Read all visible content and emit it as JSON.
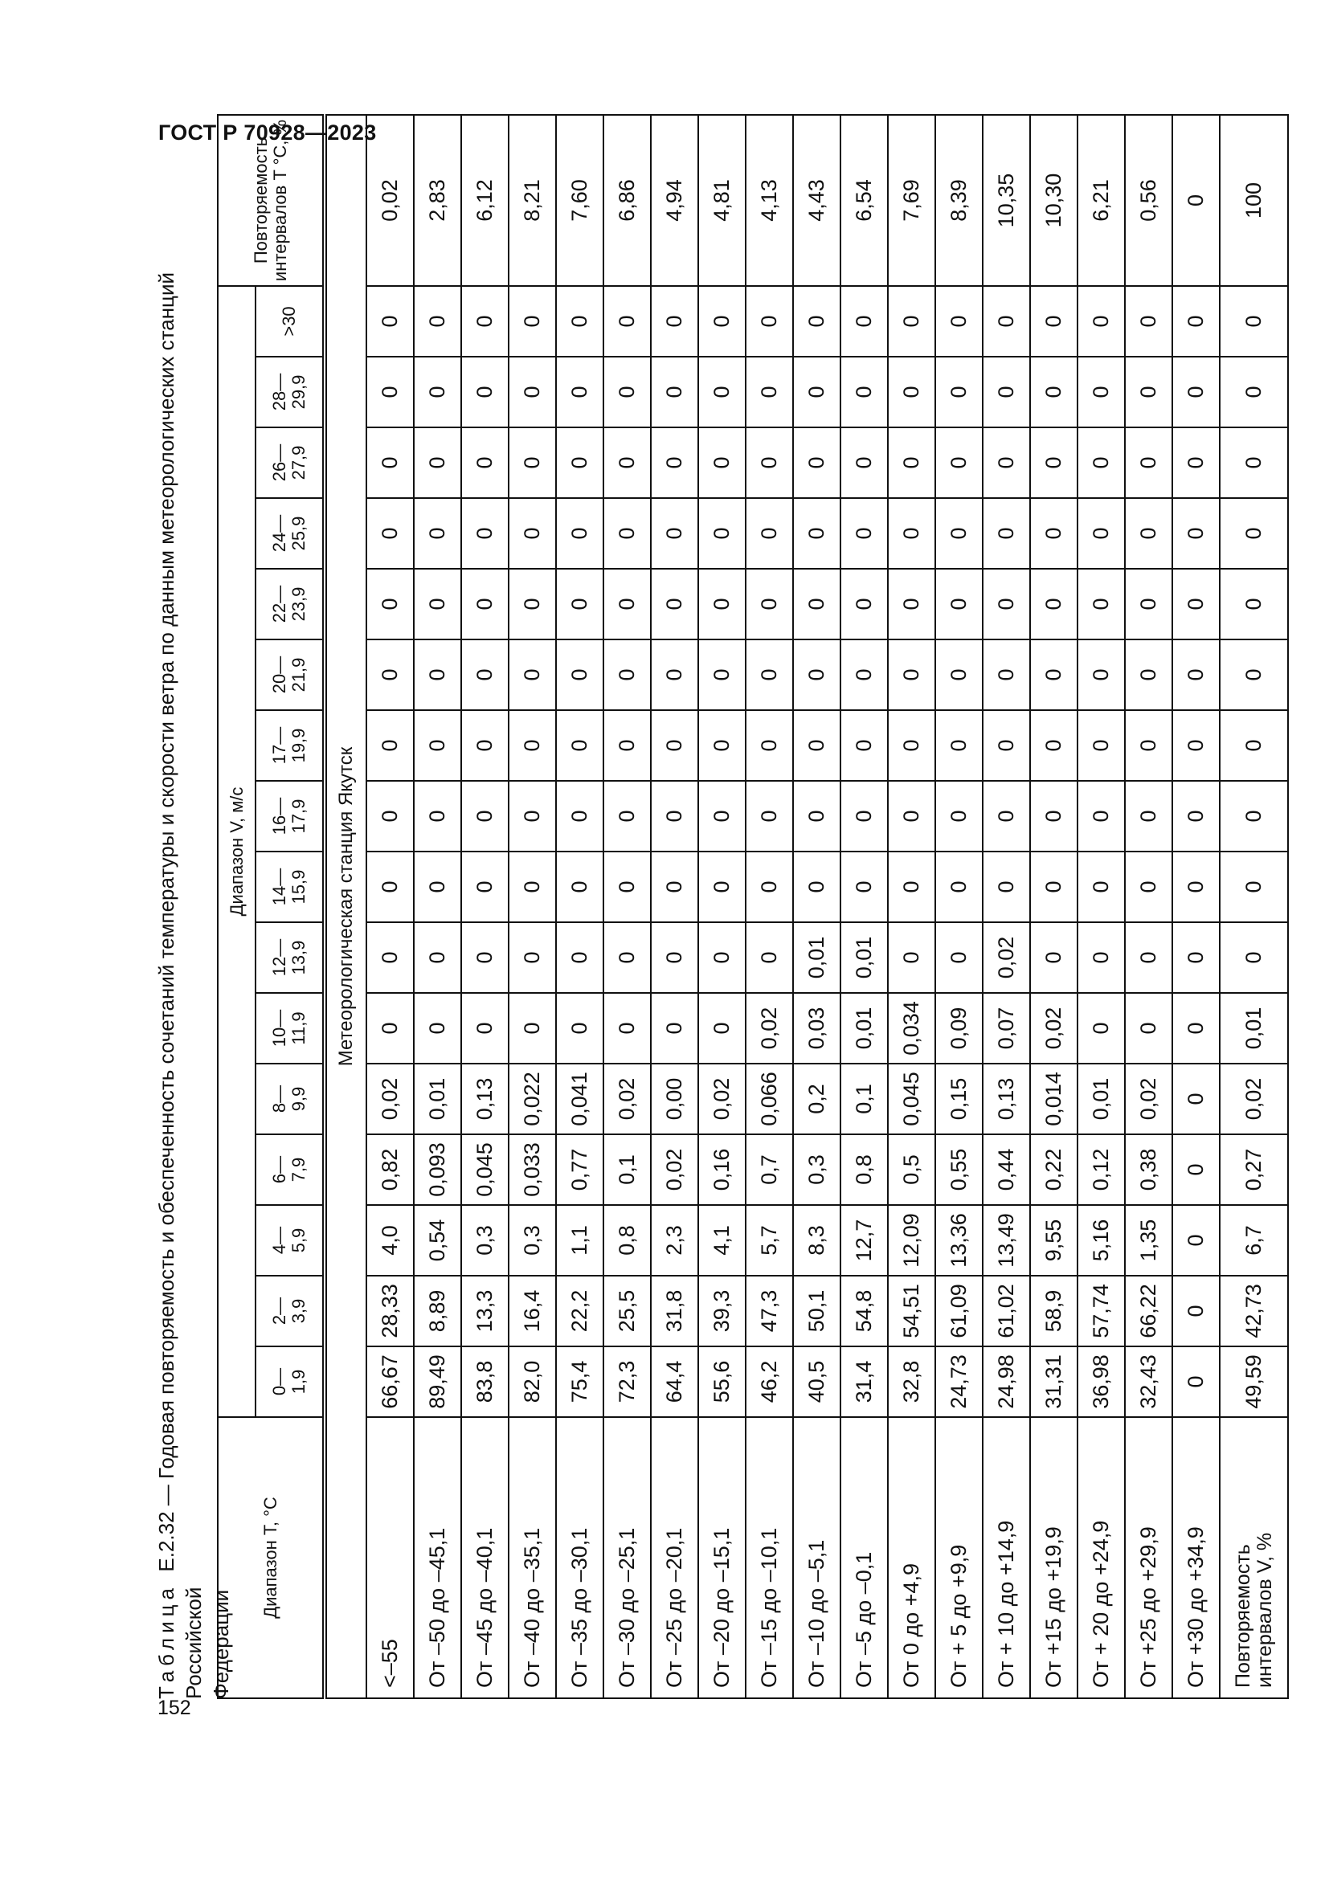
{
  "header": {
    "doc_code": "ГОСТ Р 70928—2023",
    "page_number": "152"
  },
  "caption": {
    "lead": "Таблица",
    "text": "Е.2.32 — Годовая повторяемость и обеспеченность сочетаний температуры и скорости ветра по данным метеорологических станций Российской",
    "line2": "Федерации"
  },
  "table": {
    "t_header": "Диапазон T, °C",
    "v_group_header": "Диапазон V, м/с",
    "rep_t_header": "Повторяемость интервалов T °C, %",
    "speed_columns": [
      "0—\n1,9",
      "2—\n3,9",
      "4—\n5,9",
      "6—\n7,9",
      "8—\n9,9",
      "10—\n11,9",
      "12—\n13,9",
      "14—\n15,9",
      "16—\n17,9",
      "17—\n19,9",
      "20—\n21,9",
      "22—\n23,9",
      "24—\n25,9",
      "26—\n27,9",
      "28—\n29,9",
      ">30"
    ],
    "station": "Метеорологическая станция Якутск",
    "rows": [
      {
        "label": "<–55",
        "values": [
          "66,67",
          "28,33",
          "4,0",
          "0,82",
          "0,02",
          "0",
          "0",
          "0",
          "0",
          "0",
          "0",
          "0",
          "0",
          "0",
          "0",
          "0"
        ],
        "rep": "0,02"
      },
      {
        "label": "От –50 до –45,1",
        "values": [
          "89,49",
          "8,89",
          "0,54",
          "0,093",
          "0,01",
          "0",
          "0",
          "0",
          "0",
          "0",
          "0",
          "0",
          "0",
          "0",
          "0",
          "0"
        ],
        "rep": "2,83"
      },
      {
        "label": "От –45 до –40,1",
        "values": [
          "83,8",
          "13,3",
          "0,3",
          "0,045",
          "0,13",
          "0",
          "0",
          "0",
          "0",
          "0",
          "0",
          "0",
          "0",
          "0",
          "0",
          "0"
        ],
        "rep": "6,12"
      },
      {
        "label": "От –40 до –35,1",
        "values": [
          "82,0",
          "16,4",
          "0,3",
          "0,033",
          "0,022",
          "0",
          "0",
          "0",
          "0",
          "0",
          "0",
          "0",
          "0",
          "0",
          "0",
          "0"
        ],
        "rep": "8,21"
      },
      {
        "label": "От –35 до –30,1",
        "values": [
          "75,4",
          "22,2",
          "1,1",
          "0,77",
          "0,041",
          "0",
          "0",
          "0",
          "0",
          "0",
          "0",
          "0",
          "0",
          "0",
          "0",
          "0"
        ],
        "rep": "7,60"
      },
      {
        "label": "От –30 до –25,1",
        "values": [
          "72,3",
          "25,5",
          "0,8",
          "0,1",
          "0,02",
          "0",
          "0",
          "0",
          "0",
          "0",
          "0",
          "0",
          "0",
          "0",
          "0",
          "0"
        ],
        "rep": "6,86"
      },
      {
        "label": "От –25 до –20,1",
        "values": [
          "64,4",
          "31,8",
          "2,3",
          "0,02",
          "0,00",
          "0",
          "0",
          "0",
          "0",
          "0",
          "0",
          "0",
          "0",
          "0",
          "0",
          "0"
        ],
        "rep": "4,94"
      },
      {
        "label": "От –20 до –15,1",
        "values": [
          "55,6",
          "39,3",
          "4,1",
          "0,16",
          "0,02",
          "0",
          "0",
          "0",
          "0",
          "0",
          "0",
          "0",
          "0",
          "0",
          "0",
          "0"
        ],
        "rep": "4,81"
      },
      {
        "label": "От –15 до –10,1",
        "values": [
          "46,2",
          "47,3",
          "5,7",
          "0,7",
          "0,066",
          "0,02",
          "0",
          "0",
          "0",
          "0",
          "0",
          "0",
          "0",
          "0",
          "0",
          "0"
        ],
        "rep": "4,13"
      },
      {
        "label": "От –10 до –5,1",
        "values": [
          "40,5",
          "50,1",
          "8,3",
          "0,3",
          "0,2",
          "0,03",
          "0,01",
          "0",
          "0",
          "0",
          "0",
          "0",
          "0",
          "0",
          "0",
          "0"
        ],
        "rep": "4,43"
      },
      {
        "label": "От –5 до –0,1",
        "values": [
          "31,4",
          "54,8",
          "12,7",
          "0,8",
          "0,1",
          "0,01",
          "0,01",
          "0",
          "0",
          "0",
          "0",
          "0",
          "0",
          "0",
          "0",
          "0"
        ],
        "rep": "6,54"
      },
      {
        "label": "От 0 до +4,9",
        "values": [
          "32,8",
          "54,51",
          "12,09",
          "0,5",
          "0,045",
          "0,034",
          "0",
          "0",
          "0",
          "0",
          "0",
          "0",
          "0",
          "0",
          "0",
          "0"
        ],
        "rep": "7,69"
      },
      {
        "label": "От + 5 до +9,9",
        "values": [
          "24,73",
          "61,09",
          "13,36",
          "0,55",
          "0,15",
          "0,09",
          "0",
          "0",
          "0",
          "0",
          "0",
          "0",
          "0",
          "0",
          "0",
          "0"
        ],
        "rep": "8,39"
      },
      {
        "label": "От + 10 до +14,9",
        "values": [
          "24,98",
          "61,02",
          "13,49",
          "0,44",
          "0,13",
          "0,07",
          "0,02",
          "0",
          "0",
          "0",
          "0",
          "0",
          "0",
          "0",
          "0",
          "0"
        ],
        "rep": "10,35"
      },
      {
        "label": "От +15 до +19,9",
        "values": [
          "31,31",
          "58,9",
          "9,55",
          "0,22",
          "0,014",
          "0,02",
          "0",
          "0",
          "0",
          "0",
          "0",
          "0",
          "0",
          "0",
          "0",
          "0"
        ],
        "rep": "10,30"
      },
      {
        "label": "От + 20 до +24,9",
        "values": [
          "36,98",
          "57,74",
          "5,16",
          "0,12",
          "0,01",
          "0",
          "0",
          "0",
          "0",
          "0",
          "0",
          "0",
          "0",
          "0",
          "0",
          "0"
        ],
        "rep": "6,21"
      },
      {
        "label": "От +25 до +29,9",
        "values": [
          "32,43",
          "66,22",
          "1,35",
          "0,38",
          "0,02",
          "0",
          "0",
          "0",
          "0",
          "0",
          "0",
          "0",
          "0",
          "0",
          "0",
          "0"
        ],
        "rep": "0,56"
      },
      {
        "label": "От +30 до +34,9",
        "values": [
          "0",
          "0",
          "0",
          "0",
          "0",
          "0",
          "0",
          "0",
          "0",
          "0",
          "0",
          "0",
          "0",
          "0",
          "0",
          "0"
        ],
        "rep": "0"
      }
    ],
    "total": {
      "label": "Повторяемость\nинтервалов V, %",
      "values": [
        "49,59",
        "42,73",
        "6,7",
        "0,27",
        "0,02",
        "0,01",
        "0",
        "0",
        "0",
        "0",
        "0",
        "0",
        "0",
        "0",
        "0",
        "0"
      ],
      "rep": "100"
    }
  }
}
